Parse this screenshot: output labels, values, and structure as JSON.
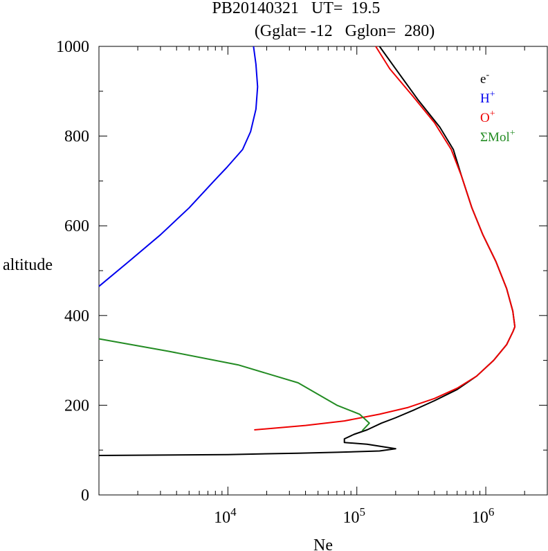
{
  "chart_data": {
    "type": "line",
    "title_line1": "PB20140321   UT=  19.5",
    "title_line2": "(Gglat= -12   Gglon=  280)",
    "xlabel": "Ne",
    "ylabel": "altitude",
    "x_scale": "log",
    "xlim": [
      1000,
      3000000
    ],
    "ylim": [
      0,
      1000
    ],
    "y_ticks": [
      0,
      200,
      400,
      600,
      800,
      1000
    ],
    "y_tick_labels": [
      "0",
      "200",
      "400",
      "600",
      "800",
      "1000"
    ],
    "x_major_ticks": [
      10000,
      100000,
      1000000
    ],
    "x_tick_labels": [
      {
        "base": "10",
        "exp": "4"
      },
      {
        "base": "10",
        "exp": "5"
      },
      {
        "base": "10",
        "exp": "6"
      }
    ],
    "legend_position": "top-right",
    "series": [
      {
        "name": "e",
        "sup": "-",
        "color": "#000000",
        "points": [
          [
            1000,
            88
          ],
          [
            10000,
            90
          ],
          [
            35000,
            93
          ],
          [
            70000,
            95
          ],
          [
            150000,
            98
          ],
          [
            200000,
            103
          ],
          [
            120000,
            113
          ],
          [
            80000,
            117
          ],
          [
            80000,
            125
          ],
          [
            95000,
            135
          ],
          [
            120000,
            145
          ],
          [
            155000,
            160
          ],
          [
            200000,
            172
          ],
          [
            280000,
            190
          ],
          [
            400000,
            210
          ],
          [
            600000,
            235
          ],
          [
            850000,
            265
          ],
          [
            1150000,
            300
          ],
          [
            1450000,
            335
          ],
          [
            1630000,
            365
          ],
          [
            1680000,
            375
          ],
          [
            1620000,
            410
          ],
          [
            1450000,
            460
          ],
          [
            1200000,
            520
          ],
          [
            950000,
            580
          ],
          [
            780000,
            640
          ],
          [
            650000,
            710
          ],
          [
            560000,
            770
          ],
          [
            440000,
            820
          ],
          [
            300000,
            880
          ],
          [
            200000,
            950
          ],
          [
            150000,
            1000
          ]
        ]
      },
      {
        "name": "H",
        "sup": "+",
        "color": "#0000ee",
        "points": [
          [
            1000,
            465
          ],
          [
            1700,
            520
          ],
          [
            3000,
            580
          ],
          [
            5000,
            640
          ],
          [
            7800,
            700
          ],
          [
            9800,
            730
          ],
          [
            13000,
            770
          ],
          [
            15000,
            810
          ],
          [
            16500,
            860
          ],
          [
            17000,
            910
          ],
          [
            16500,
            960
          ],
          [
            15800,
            1000
          ]
        ]
      },
      {
        "name": "O",
        "sup": "+",
        "color": "#ee0000",
        "points": [
          [
            16000,
            145
          ],
          [
            40000,
            155
          ],
          [
            80000,
            165
          ],
          [
            150000,
            180
          ],
          [
            250000,
            195
          ],
          [
            400000,
            215
          ],
          [
            600000,
            238
          ],
          [
            850000,
            265
          ],
          [
            1150000,
            300
          ],
          [
            1450000,
            335
          ],
          [
            1630000,
            365
          ],
          [
            1680000,
            375
          ],
          [
            1620000,
            410
          ],
          [
            1450000,
            460
          ],
          [
            1200000,
            520
          ],
          [
            950000,
            580
          ],
          [
            780000,
            640
          ],
          [
            650000,
            710
          ],
          [
            540000,
            770
          ],
          [
            400000,
            830
          ],
          [
            270000,
            890
          ],
          [
            180000,
            950
          ],
          [
            140000,
            1000
          ]
        ]
      },
      {
        "name": "ΣMol",
        "sup": "+",
        "color": "#228b22",
        "points": [
          [
            1000,
            348
          ],
          [
            3500,
            320
          ],
          [
            12000,
            290
          ],
          [
            35000,
            250
          ],
          [
            70000,
            200
          ],
          [
            105000,
            180
          ],
          [
            125000,
            160
          ],
          [
            110000,
            143
          ]
        ]
      }
    ]
  }
}
